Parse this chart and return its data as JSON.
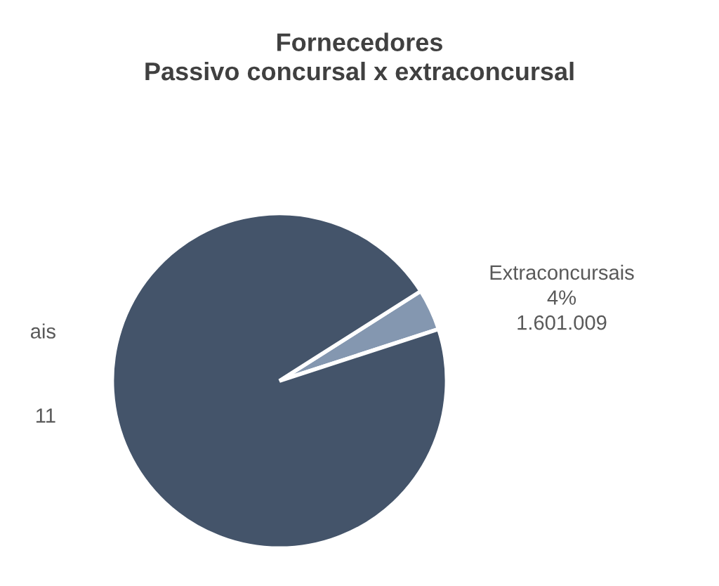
{
  "chart_data": {
    "type": "pie",
    "title": "Fornecedores\nPassivo concursal x extraconcursal",
    "categories": [
      "Extraconcursais",
      "ais"
    ],
    "values": [
      4,
      96
    ],
    "colors": [
      "#8497b0",
      "#44546a"
    ],
    "value_labels": [
      "4%\n1.601.009",
      null
    ],
    "annotations": [
      "11"
    ]
  }
}
